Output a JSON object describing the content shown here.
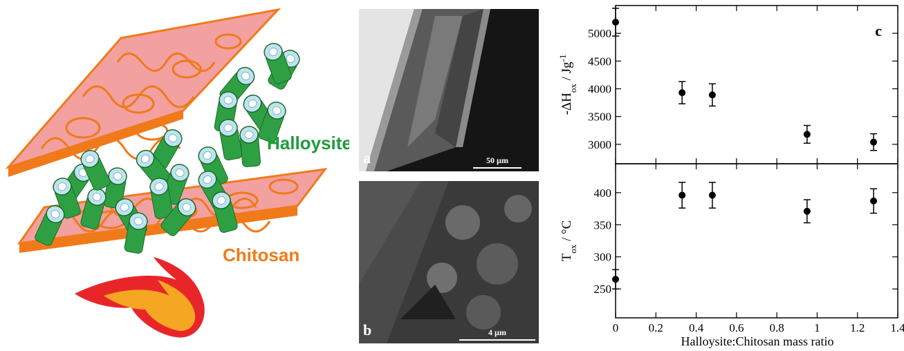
{
  "illustration": {
    "labels": {
      "halloysite": "Halloysite",
      "chitosan": "Chitosan"
    },
    "colors": {
      "sheet": "#f2a0a0",
      "sheet_edge": "#f07a1a",
      "fiber": "#f07a1a",
      "tube": "#2ea043",
      "tube_end": "#bfe3ef",
      "flame_outer": "#e8262a",
      "flame_inner": "#f5a623"
    }
  },
  "sem": {
    "a": {
      "letter": "a",
      "scale": "50 µm"
    },
    "b": {
      "letter": "b",
      "scale": "4 µm"
    }
  },
  "panel_label": "c",
  "chart_data": {
    "type": "scatter",
    "x_label": "Halloysite:Chitosan mass ratio",
    "x_ticks": [
      "0",
      "0.2",
      "0.4",
      "0.6",
      "0.8",
      "1",
      "1.2",
      "1.4"
    ],
    "xlim": [
      0,
      1.4
    ],
    "panels": [
      {
        "name": "top",
        "ylabel_main": "-ΔH",
        "ylabel_sub": "ox",
        "ylabel_rest": " / Jg",
        "ylabel_sup": "-1",
        "ylim": [
          2650,
          5500
        ],
        "y_ticks": [
          "3000",
          "3500",
          "4000",
          "4500",
          "5000"
        ],
        "points": [
          {
            "x": 0,
            "y": 5200,
            "err": 250
          },
          {
            "x": 0.33,
            "y": 3930,
            "err": 200
          },
          {
            "x": 0.48,
            "y": 3890,
            "err": 200
          },
          {
            "x": 0.95,
            "y": 3180,
            "err": 160
          },
          {
            "x": 1.28,
            "y": 3040,
            "err": 150
          }
        ]
      },
      {
        "name": "bottom",
        "ylabel_main": "T",
        "ylabel_sub": "ox",
        "ylabel_rest": " / °C",
        "ylabel_sup": "",
        "ylim": [
          205,
          445
        ],
        "y_ticks": [
          "250",
          "300",
          "350",
          "400"
        ],
        "points": [
          {
            "x": 0,
            "y": 265,
            "err": 15
          },
          {
            "x": 0.33,
            "y": 396,
            "err": 20
          },
          {
            "x": 0.48,
            "y": 396,
            "err": 20
          },
          {
            "x": 0.95,
            "y": 371,
            "err": 18
          },
          {
            "x": 1.28,
            "y": 387,
            "err": 19
          }
        ]
      }
    ]
  }
}
